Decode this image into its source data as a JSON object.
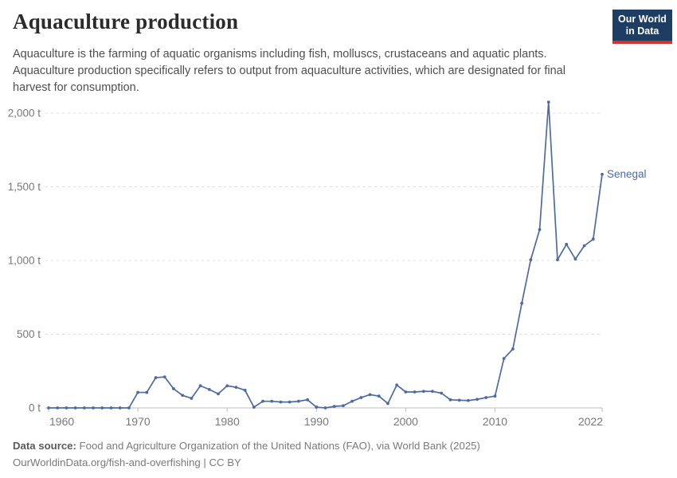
{
  "header": {
    "title": "Aquaculture production",
    "subtitle_lines": [
      "Aquaculture is the farming of aquatic organisms including fish, molluscs, crustaceans and aquatic plants.",
      "Aquaculture production specifically refers to output from aquaculture activities, which are designated for final",
      "harvest for consumption."
    ],
    "logo": {
      "line1": "Our World",
      "line2": "in Data",
      "bg_color": "#1d3d63",
      "accent_color": "#d0342c"
    }
  },
  "chart_data": {
    "type": "line",
    "title": "Aquaculture production",
    "xlabel": "",
    "ylabel": "",
    "unit": "t",
    "grid": "horizontal dashed",
    "legend_position": "end-of-line entity label",
    "xlim": [
      1960,
      2022
    ],
    "ylim": [
      0,
      2100
    ],
    "x": [
      1960,
      1961,
      1962,
      1963,
      1964,
      1965,
      1966,
      1967,
      1968,
      1969,
      1970,
      1971,
      1972,
      1973,
      1974,
      1975,
      1976,
      1977,
      1978,
      1979,
      1980,
      1981,
      1982,
      1983,
      1984,
      1985,
      1986,
      1987,
      1988,
      1989,
      1990,
      1991,
      1992,
      1993,
      1994,
      1995,
      1996,
      1997,
      1998,
      1999,
      2000,
      2001,
      2002,
      2003,
      2004,
      2005,
      2006,
      2007,
      2008,
      2009,
      2010,
      2011,
      2012,
      2013,
      2014,
      2015,
      2016,
      2017,
      2018,
      2019,
      2020,
      2021,
      2022
    ],
    "series": [
      {
        "name": "Senegal",
        "color": "#4c6ba3",
        "values": [
          0,
          0,
          0,
          0,
          0,
          0,
          0,
          0,
          0,
          0,
          105,
          105,
          205,
          210,
          130,
          85,
          65,
          150,
          125,
          95,
          150,
          140,
          120,
          5,
          45,
          45,
          40,
          40,
          45,
          55,
          5,
          0,
          10,
          15,
          45,
          70,
          90,
          80,
          30,
          155,
          108,
          108,
          112,
          112,
          100,
          55,
          52,
          50,
          58,
          70,
          80,
          335,
          400,
          710,
          1005,
          1210,
          2075,
          1005,
          1110,
          1010,
          1100,
          1145,
          1585
        ]
      }
    ],
    "yticks": [
      {
        "value": 0,
        "label": "0 t"
      },
      {
        "value": 500,
        "label": "500 t"
      },
      {
        "value": 1000,
        "label": "1,000 t"
      },
      {
        "value": 1500,
        "label": "1,500 t"
      },
      {
        "value": 2000,
        "label": "2,000 t"
      }
    ],
    "xticks": [
      {
        "value": 1960,
        "label": "1960"
      },
      {
        "value": 1970,
        "label": "1970"
      },
      {
        "value": 1980,
        "label": "1980"
      },
      {
        "value": 1990,
        "label": "1990"
      },
      {
        "value": 2000,
        "label": "2000"
      },
      {
        "value": 2010,
        "label": "2010"
      },
      {
        "value": 2022,
        "label": "2022"
      }
    ]
  },
  "footer": {
    "datasource_label": "Data source:",
    "datasource_text": " Food and Agriculture Organization of the United Nations (FAO), via World Bank (2025)",
    "url_line": "OurWorldinData.org/fish-and-overfishing | CC BY"
  }
}
